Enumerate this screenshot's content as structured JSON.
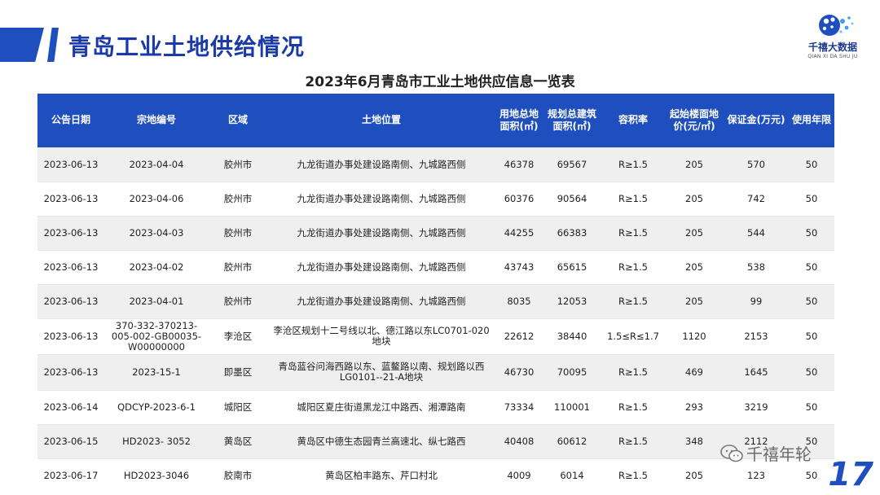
{
  "header": {
    "title": "青岛工业土地供给情况",
    "logo_cn": "千禧大数据",
    "logo_en": "QIAN XI DA SHU JU"
  },
  "table": {
    "caption": "2023年6月青岛市工业土地供应信息一览表",
    "headers": [
      "公告日期",
      "宗地编号",
      "区域",
      "土地位置",
      "用地总地面积(㎡)",
      "规划总建筑面积(㎡)",
      "容积率",
      "起始楼面地价(元/㎡)",
      "保证金(万元)",
      "使用年限"
    ],
    "rows": [
      [
        "2023-06-13",
        "2023-04-04",
        "胶州市",
        "九龙街道办事处建设路南侧、九城路西侧",
        "46378",
        "69567",
        "R≥1.5",
        "205",
        "570",
        "50"
      ],
      [
        "2023-06-13",
        "2023-04-06",
        "胶州市",
        "九龙街道办事处建设路南侧、九城路西侧",
        "60376",
        "90564",
        "R≥1.5",
        "205",
        "742",
        "50"
      ],
      [
        "2023-06-13",
        "2023-04-03",
        "胶州市",
        "九龙街道办事处建设路南侧、九城路西侧",
        "44255",
        "66383",
        "R≥1.5",
        "205",
        "544",
        "50"
      ],
      [
        "2023-06-13",
        "2023-04-02",
        "胶州市",
        "九龙街道办事处建设路南侧、九城路西侧",
        "43743",
        "65615",
        "R≥1.5",
        "205",
        "538",
        "50"
      ],
      [
        "2023-06-13",
        "2023-04-01",
        "胶州市",
        "九龙街道办事处建设路南侧、九城路西侧",
        "8035",
        "12053",
        "R≥1.5",
        "205",
        "99",
        "50"
      ],
      [
        "2023-06-13",
        "370-332-370213-005-002-GB00035-W00000000",
        "李沧区",
        "李沧区规划十二号线以北、德江路以东LC0701-020地块",
        "22612",
        "38440",
        "1.5≤R≤1.7",
        "1120",
        "2153",
        "50"
      ],
      [
        "2023-06-13",
        "2023-15-1",
        "即墨区",
        "青岛蓝谷问海西路以东、蓝鳌路以南、规划路以西LG0101--21-A地块",
        "46730",
        "70095",
        "R≥1.5",
        "469",
        "1645",
        "50"
      ],
      [
        "2023-06-14",
        "QDCYP-2023-6-1",
        "城阳区",
        "城阳区夏庄街道黑龙江中路西、湘潭路南",
        "73334",
        "110001",
        "R≥1.5",
        "293",
        "3219",
        "50"
      ],
      [
        "2023-06-15",
        "HD2023- 3052",
        "黄岛区",
        "黄岛区中德生态园青兰高速北、纵七路西",
        "40408",
        "60612",
        "R≥1.5",
        "348",
        "2112",
        "50"
      ],
      [
        "2023-06-17",
        "HD2023-3046",
        "胶南市",
        "黄岛区柏丰路东、芹口村北",
        "4009",
        "6014",
        "R≥1.5",
        "205",
        "123",
        "50"
      ]
    ]
  },
  "watermark": "千禧年轮",
  "page_number": "17",
  "colors": {
    "accent": "#1f4fbf",
    "row_alt": "#efefef"
  }
}
